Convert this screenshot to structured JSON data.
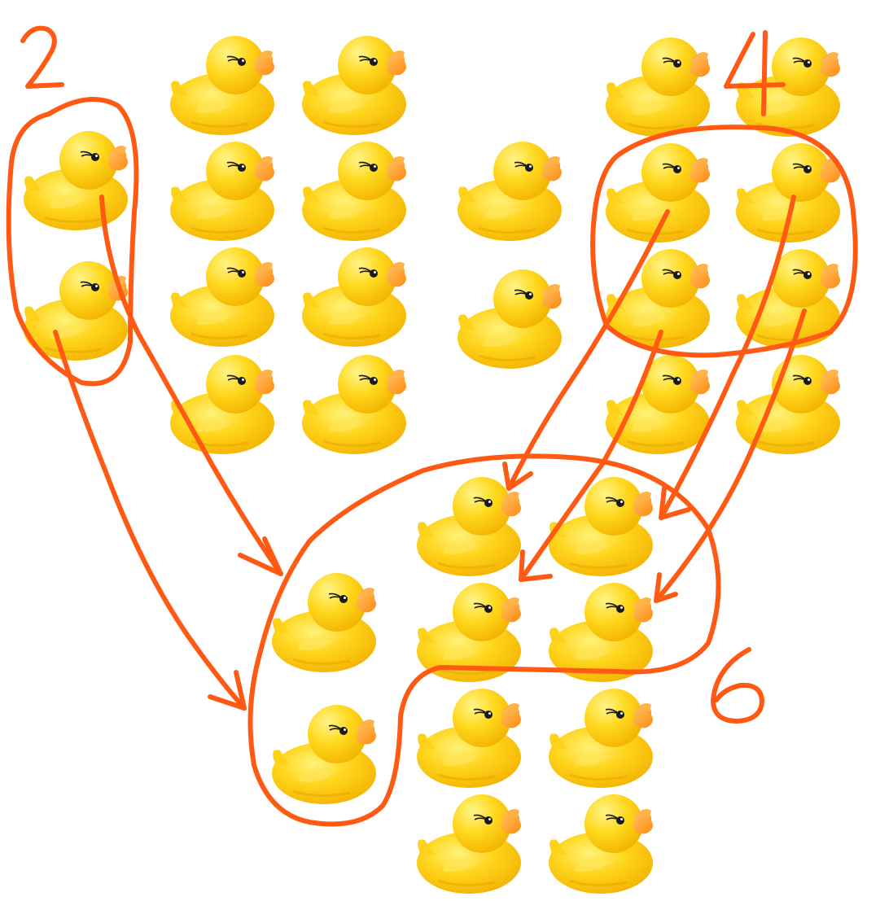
{
  "colors": {
    "duck_body": "#ffd21a",
    "duck_shadow": "#f2b400",
    "beak": "#ff9a1f",
    "eye": "#1a1a1a",
    "annotation": "#ff5a14",
    "background": "#ffffff"
  },
  "labels": {
    "group_left": "2",
    "group_right": "4",
    "group_result": "6"
  }
}
